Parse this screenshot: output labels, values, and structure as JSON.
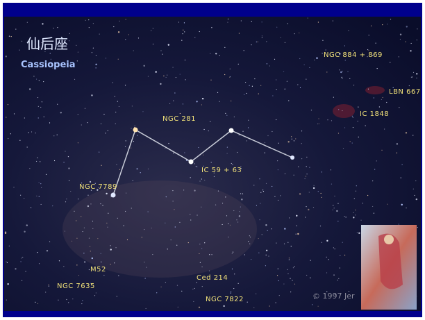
{
  "title": {
    "chinese": "仙后座",
    "latin": "Cassiopeia"
  },
  "labels": [
    "NGC 884 + 869",
    "LBN 667",
    "IC 1848",
    "NGC 281",
    "IC 59 + 63",
    "NGC 7789",
    "M52",
    "NGC 7635",
    "Ced 214",
    "NGC 7822"
  ],
  "credit": "© 1997 Jer"
}
